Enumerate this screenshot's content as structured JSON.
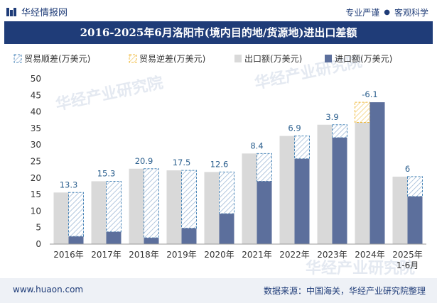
{
  "header": {
    "brand": "华经情报网",
    "slogan_left": "专业严谨",
    "slogan_sep": "●",
    "slogan_right": "客观科学"
  },
  "title": "2016-2025年6月洛阳市(境内目的地/货源地)进出口差额",
  "footer": {
    "website": "www.huaon.com",
    "source": "数据来源：中国海关，华经产业研究院整理"
  },
  "watermark": {
    "text": "华经产业研究院",
    "url": "www.huaon.com"
  },
  "colors": {
    "export": "#d9d9d9",
    "import": "#5c6f9c",
    "surplus_border": "#4a86b8",
    "surplus_hatch": "#9fb9d6",
    "deficit_border": "#f0b93a",
    "deficit_hatch": "#f3cf77",
    "title_bg": "#1f3c78",
    "label": "#2b5f8e"
  },
  "chart_data": {
    "type": "bar",
    "categories": [
      "2016年",
      "2017年",
      "2018年",
      "2019年",
      "2020年",
      "2021年",
      "2022年",
      "2023年",
      "2024年",
      "2025年\n1-6月"
    ],
    "series": [
      {
        "name": "出口额(万美元)",
        "values": [
          15.6,
          19.0,
          22.8,
          22.3,
          21.8,
          27.4,
          32.7,
          36.1,
          36.8,
          20.4
        ]
      },
      {
        "name": "进口额(万美元)",
        "values": [
          2.3,
          3.7,
          1.9,
          4.8,
          9.2,
          19.0,
          25.8,
          32.2,
          42.9,
          14.4
        ]
      }
    ],
    "balance": {
      "surplus_name": "贸易顺差(万美元)",
      "deficit_name": "贸易逆差(万美元)",
      "labels": [
        "13.3",
        "15.3",
        "20.9",
        "17.5",
        "12.6",
        "8.4",
        "6.9",
        "3.9",
        "-6.1",
        "6"
      ],
      "values": [
        13.3,
        15.3,
        20.9,
        17.5,
        12.6,
        8.4,
        6.9,
        3.9,
        -6.1,
        6
      ]
    },
    "y_ticks": [
      "0",
      "5",
      "10",
      "15",
      "20",
      "25",
      "30",
      "35",
      "40",
      "45",
      "50"
    ],
    "ylim": [
      0,
      50
    ],
    "legend_position": "top-left",
    "grid": false
  }
}
